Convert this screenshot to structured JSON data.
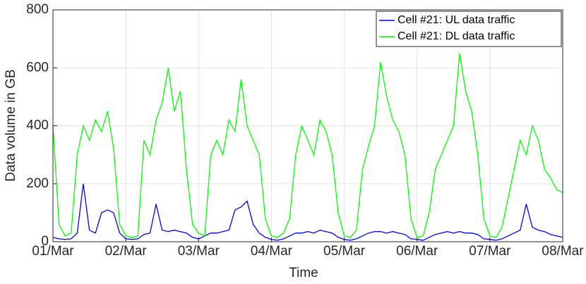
{
  "chart_data": {
    "type": "line",
    "xlabel": "Time",
    "ylabel": "Data volume in GB",
    "x": [
      0,
      2,
      4,
      6,
      8,
      10,
      12,
      14,
      16,
      18,
      20,
      22,
      24,
      26,
      28,
      30,
      32,
      34,
      36,
      38,
      40,
      42,
      44,
      46,
      48,
      50,
      52,
      54,
      56,
      58,
      60,
      62,
      64,
      66,
      68,
      70,
      72,
      74,
      76,
      78,
      80,
      82,
      84,
      86,
      88,
      90,
      92,
      94,
      96,
      98,
      100,
      102,
      104,
      106,
      108,
      110,
      112,
      114,
      116,
      118,
      120,
      122,
      124,
      126,
      128,
      130,
      132,
      134,
      136,
      138,
      140,
      142,
      144,
      146,
      148,
      150,
      152,
      154,
      156,
      158,
      160,
      162,
      164,
      166,
      168
    ],
    "series": [
      {
        "name": "Cell #21: UL data traffic",
        "color": "#0000ff",
        "values": [
          15,
          10,
          8,
          10,
          30,
          200,
          40,
          30,
          100,
          110,
          100,
          30,
          10,
          8,
          10,
          25,
          30,
          130,
          40,
          35,
          40,
          35,
          30,
          15,
          10,
          20,
          30,
          30,
          35,
          40,
          110,
          120,
          140,
          60,
          30,
          15,
          8,
          5,
          10,
          20,
          30,
          30,
          35,
          30,
          40,
          35,
          30,
          15,
          8,
          5,
          10,
          20,
          30,
          35,
          35,
          30,
          35,
          30,
          25,
          10,
          8,
          5,
          15,
          25,
          30,
          35,
          30,
          35,
          30,
          30,
          25,
          10,
          8,
          5,
          10,
          20,
          30,
          40,
          130,
          50,
          40,
          35,
          25,
          20,
          15
        ]
      },
      {
        "name": "Cell #21: DL data traffic",
        "color": "#00ff00",
        "values": [
          400,
          60,
          20,
          30,
          300,
          400,
          350,
          420,
          380,
          450,
          320,
          60,
          20,
          15,
          20,
          350,
          300,
          420,
          480,
          600,
          450,
          520,
          250,
          60,
          30,
          20,
          300,
          350,
          300,
          420,
          380,
          560,
          400,
          350,
          300,
          80,
          20,
          15,
          30,
          80,
          300,
          400,
          350,
          300,
          420,
          380,
          300,
          100,
          20,
          15,
          40,
          250,
          330,
          400,
          620,
          500,
          420,
          380,
          300,
          80,
          15,
          20,
          100,
          250,
          300,
          350,
          400,
          650,
          520,
          450,
          300,
          80,
          20,
          15,
          50,
          150,
          250,
          350,
          300,
          400,
          350,
          250,
          220,
          180,
          170
        ]
      }
    ],
    "xlim": [
      0,
      168
    ],
    "xticks": [
      {
        "value": 0,
        "label": "01/Mar"
      },
      {
        "value": 24,
        "label": "02/Mar"
      },
      {
        "value": 48,
        "label": "03/Mar"
      },
      {
        "value": 72,
        "label": "04/Mar"
      },
      {
        "value": 96,
        "label": "05/Mar"
      },
      {
        "value": 120,
        "label": "06/Mar"
      },
      {
        "value": 144,
        "label": "07/Mar"
      },
      {
        "value": 168,
        "label": "08/Mar"
      }
    ],
    "ylim": [
      0,
      800
    ],
    "yticks": [
      0,
      200,
      400,
      600,
      800
    ],
    "grid": true,
    "legend": "upper right"
  }
}
